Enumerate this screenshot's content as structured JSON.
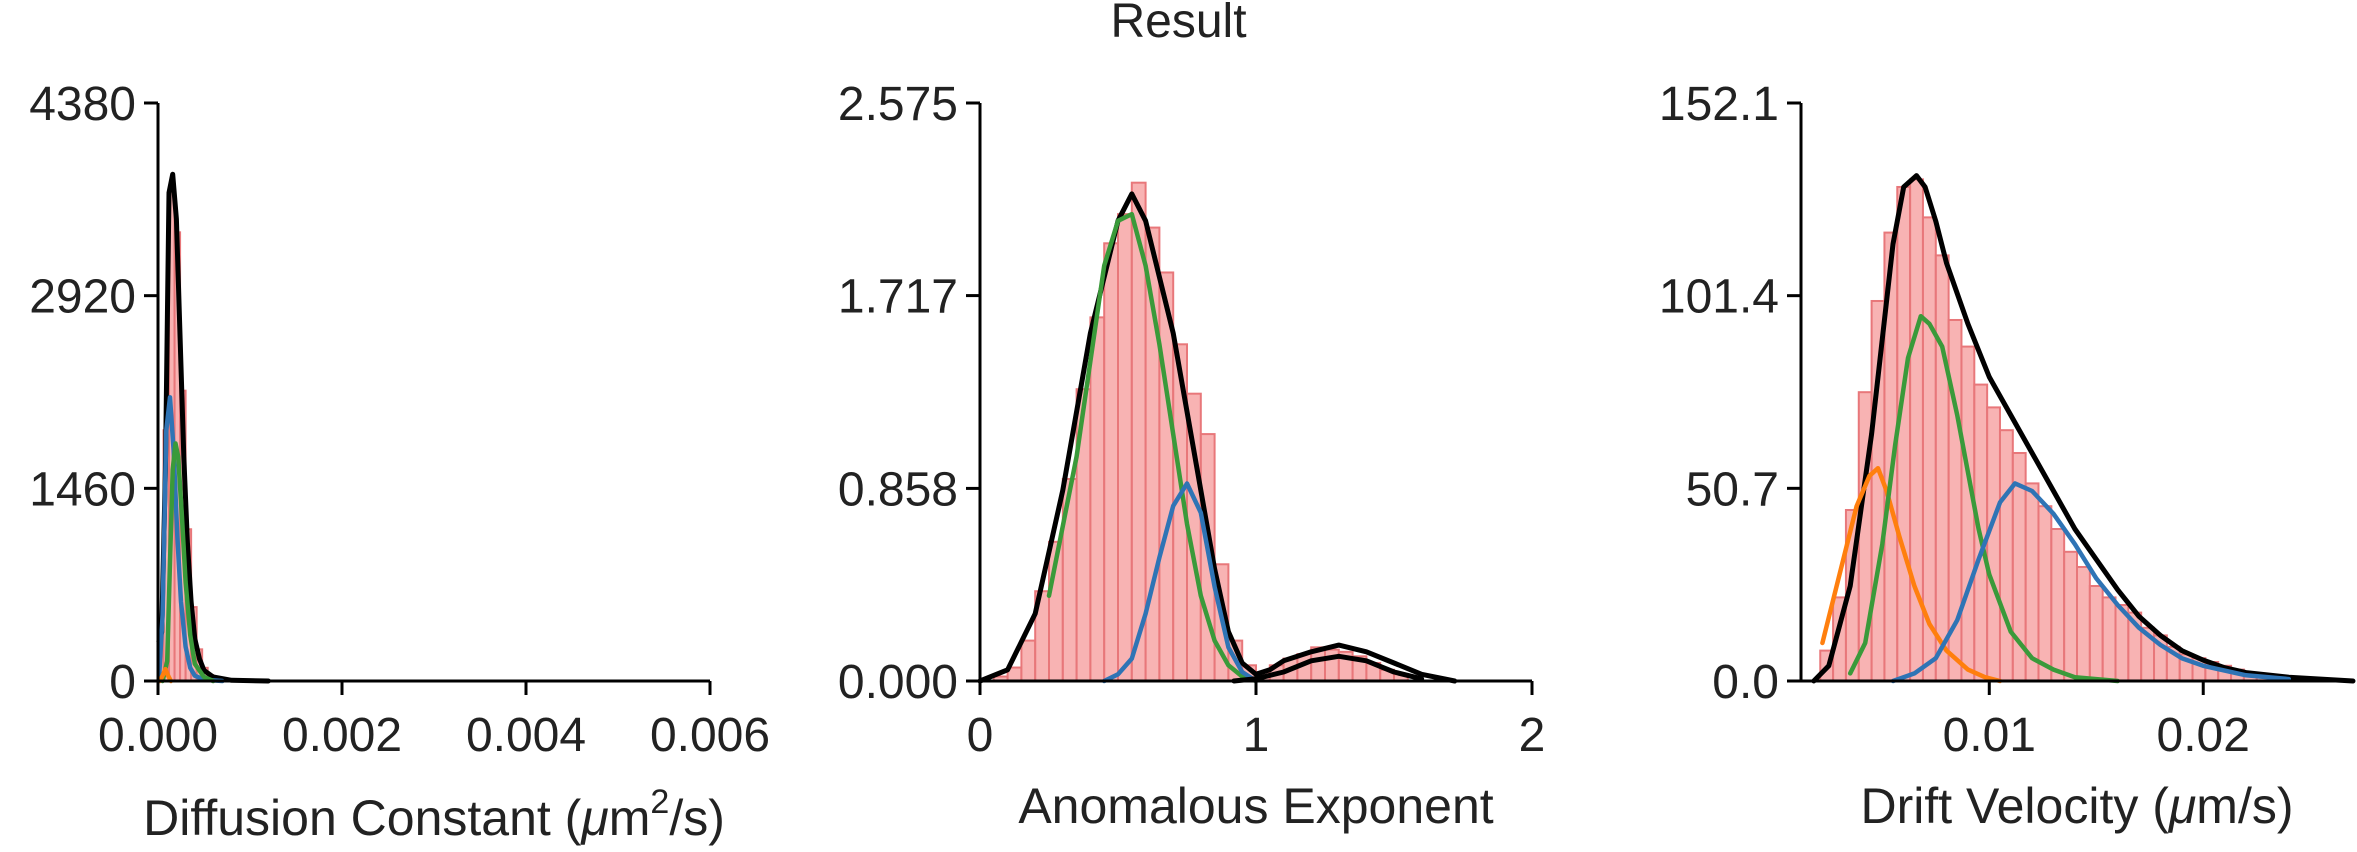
{
  "figure_title": "Result",
  "colors": {
    "hist_fill": "#f7a6a6",
    "hist_edge": "#e8777a",
    "total": "#000000",
    "blue": "#2f74b5",
    "green": "#3a9a3a",
    "orange": "#ff7f0e"
  },
  "chart_data": [
    {
      "type": "bar",
      "overlay": "line",
      "xlabel_text": "Diffusion Constant (",
      "xlabel_mu": "μ",
      "xlabel_m": "m",
      "xlabel_sup": "2",
      "xlabel_tail": "/s)",
      "xlim": [
        0,
        0.006
      ],
      "ylim": [
        0,
        4380
      ],
      "xticks": [
        0,
        0.002,
        0.004,
        0.006
      ],
      "xticklabels": [
        "0.000",
        "0.002",
        "0.004",
        "0.006"
      ],
      "yticks": [
        0,
        1460,
        2920,
        4380
      ],
      "yticklabels": [
        "0",
        "1460",
        "2920",
        "4380"
      ],
      "grid": false,
      "histogram": {
        "bin_width": 6e-05,
        "centers": [
          3e-05,
          9e-05,
          0.00015,
          0.00021,
          0.00027,
          0.00033,
          0.00039,
          0.00045,
          0.00051,
          0.00057,
          0.00063,
          0.00069,
          0.00075
        ],
        "values": [
          300,
          1900,
          3750,
          3400,
          2200,
          1150,
          560,
          240,
          100,
          45,
          20,
          10,
          5
        ]
      },
      "series": [
        {
          "color": "black",
          "x": [
            1e-05,
            4e-05,
            8e-05,
            0.00012,
            0.00016,
            0.0002,
            0.00024,
            0.00028,
            0.00032,
            0.00036,
            0.0004,
            0.00045,
            0.0005,
            0.0006,
            0.0008,
            0.0012
          ],
          "y": [
            300,
            370,
            1600,
            3700,
            3840,
            3500,
            2600,
            1700,
            1050,
            600,
            320,
            170,
            80,
            30,
            5,
            0
          ]
        },
        {
          "color": "blue",
          "x": [
            1e-05,
            5e-05,
            9e-05,
            0.00013,
            0.00017,
            0.00021,
            0.00025,
            0.0003,
            0.00035,
            0.0004,
            0.0005,
            0.0007
          ],
          "y": [
            0,
            500,
            1900,
            2150,
            1750,
            1100,
            600,
            260,
            100,
            40,
            10,
            0
          ]
        },
        {
          "color": "green",
          "x": [
            5e-05,
            0.0001,
            0.00013,
            0.00016,
            0.00019,
            0.00022,
            0.00026,
            0.0003,
            0.00035,
            0.0004,
            0.0005,
            0.0006
          ],
          "y": [
            0,
            150,
            900,
            1600,
            1800,
            1700,
            1250,
            750,
            350,
            130,
            30,
            0
          ]
        },
        {
          "color": "orange",
          "x": [
            2e-05,
            5e-05,
            8e-05,
            0.00011,
            0.00014
          ],
          "y": [
            0,
            40,
            90,
            40,
            0
          ]
        }
      ]
    },
    {
      "type": "bar",
      "overlay": "line",
      "xlabel": "Anomalous Exponent",
      "xlim": [
        0,
        2
      ],
      "ylim": [
        0,
        2.575
      ],
      "xticks": [
        0,
        1,
        2
      ],
      "xticklabels": [
        "0",
        "1",
        "2"
      ],
      "yticks": [
        0,
        0.858,
        1.717,
        2.575
      ],
      "yticklabels": [
        "0.000",
        "0.858",
        "1.717",
        "2.575"
      ],
      "grid": false,
      "histogram": {
        "bin_width": 0.05,
        "centers": [
          0.075,
          0.125,
          0.175,
          0.225,
          0.275,
          0.325,
          0.375,
          0.425,
          0.475,
          0.525,
          0.575,
          0.625,
          0.675,
          0.725,
          0.775,
          0.825,
          0.875,
          0.925,
          0.975,
          1.025,
          1.075,
          1.125,
          1.175,
          1.225,
          1.275,
          1.325,
          1.375,
          1.425,
          1.475,
          1.525
        ],
        "values": [
          0.02,
          0.06,
          0.18,
          0.4,
          0.62,
          0.9,
          1.3,
          1.62,
          1.95,
          2.08,
          2.22,
          2.02,
          1.82,
          1.5,
          1.28,
          1.1,
          0.52,
          0.18,
          0.07,
          0.04,
          0.07,
          0.1,
          0.12,
          0.15,
          0.14,
          0.13,
          0.11,
          0.08,
          0.05,
          0.03
        ]
      },
      "series": [
        {
          "color": "black",
          "x": [
            0,
            0.1,
            0.2,
            0.3,
            0.4,
            0.5,
            0.55,
            0.6,
            0.65,
            0.7,
            0.75,
            0.8,
            0.85,
            0.9,
            0.95,
            1.0,
            1.05,
            1.1,
            1.2,
            1.3,
            1.4,
            1.5,
            1.6,
            1.72
          ],
          "y": [
            0,
            0.05,
            0.3,
            0.85,
            1.55,
            2.05,
            2.17,
            2.05,
            1.8,
            1.55,
            1.2,
            0.85,
            0.5,
            0.22,
            0.08,
            0.03,
            0.05,
            0.09,
            0.13,
            0.16,
            0.13,
            0.08,
            0.03,
            0
          ]
        },
        {
          "color": "green",
          "x": [
            0.25,
            0.35,
            0.45,
            0.5,
            0.55,
            0.6,
            0.65,
            0.7,
            0.75,
            0.8,
            0.85,
            0.9,
            0.95,
            1.0
          ],
          "y": [
            0.38,
            1.0,
            1.85,
            2.05,
            2.08,
            1.85,
            1.5,
            1.1,
            0.7,
            0.38,
            0.18,
            0.07,
            0.02,
            0
          ]
        },
        {
          "color": "blue",
          "x": [
            0.45,
            0.5,
            0.55,
            0.6,
            0.65,
            0.7,
            0.75,
            0.8,
            0.85,
            0.9,
            0.95,
            1.0
          ],
          "y": [
            0,
            0.03,
            0.1,
            0.3,
            0.55,
            0.78,
            0.88,
            0.75,
            0.42,
            0.15,
            0.04,
            0
          ]
        },
        {
          "color": "black",
          "x": [
            0.92,
            1.0,
            1.1,
            1.2,
            1.3,
            1.4,
            1.5,
            1.6
          ],
          "y": [
            0,
            0.01,
            0.04,
            0.09,
            0.11,
            0.09,
            0.04,
            0.01
          ]
        }
      ]
    },
    {
      "type": "bar",
      "overlay": "line",
      "xlabel_text": "Drift Velocity (",
      "xlabel_mu": "μ",
      "xlabel_tail": "m/s)",
      "xlim": [
        0.0012,
        0.027
      ],
      "ylim": [
        0,
        152.1
      ],
      "xticks": [
        0.01,
        0.02
      ],
      "xticklabels": [
        "0.01",
        "0.02"
      ],
      "yticks": [
        0,
        50.7,
        101.4,
        152.1
      ],
      "yticklabels": [
        "0.0",
        "50.7",
        "101.4",
        "152.1"
      ],
      "grid": false,
      "histogram": {
        "bin_width": 0.0006,
        "centers": [
          0.0024,
          0.003,
          0.0036,
          0.0042,
          0.0048,
          0.0054,
          0.006,
          0.0066,
          0.0072,
          0.0078,
          0.0084,
          0.009,
          0.0096,
          0.0102,
          0.0108,
          0.0114,
          0.012,
          0.0126,
          0.0132,
          0.0138,
          0.0144,
          0.015,
          0.0156,
          0.0162,
          0.0168,
          0.0174,
          0.018,
          0.0186,
          0.0192,
          0.0198,
          0.0204,
          0.021,
          0.0216,
          0.0222,
          0.0228
        ],
        "values": [
          8,
          22,
          45,
          76,
          100,
          118,
          130,
          132,
          122,
          112,
          95,
          88,
          78,
          72,
          66,
          60,
          52,
          46,
          40,
          34,
          30,
          25,
          22,
          20,
          18,
          14,
          12,
          9,
          7,
          6,
          5,
          4,
          3,
          2,
          1
        ]
      },
      "series": [
        {
          "color": "black",
          "x": [
            0.0018,
            0.0025,
            0.0035,
            0.0045,
            0.0055,
            0.006,
            0.0066,
            0.007,
            0.0075,
            0.008,
            0.009,
            0.01,
            0.011,
            0.012,
            0.013,
            0.014,
            0.015,
            0.016,
            0.017,
            0.018,
            0.019,
            0.02,
            0.021,
            0.022,
            0.024,
            0.027
          ],
          "y": [
            0,
            4,
            25,
            65,
            115,
            130,
            133,
            130,
            121,
            110,
            94,
            80,
            70,
            60,
            50,
            40,
            32,
            24,
            17,
            12,
            8,
            5.5,
            3.5,
            2.2,
            1,
            0
          ]
        },
        {
          "color": "orange",
          "x": [
            0.0022,
            0.003,
            0.0038,
            0.0044,
            0.0048,
            0.0052,
            0.0058,
            0.0065,
            0.0072,
            0.008,
            0.009,
            0.0098,
            0.0105
          ],
          "y": [
            10,
            28,
            46,
            54,
            56,
            50,
            38,
            25,
            15,
            8,
            3,
            1,
            0
          ]
        },
        {
          "color": "green",
          "x": [
            0.0035,
            0.0042,
            0.005,
            0.0056,
            0.0062,
            0.0068,
            0.0072,
            0.0078,
            0.0085,
            0.009,
            0.0095,
            0.01,
            0.011,
            0.012,
            0.013,
            0.014,
            0.016
          ],
          "y": [
            2,
            10,
            36,
            62,
            85,
            96,
            94,
            88,
            70,
            55,
            40,
            28,
            13,
            6,
            3,
            1,
            0
          ]
        },
        {
          "color": "blue",
          "x": [
            0.0055,
            0.0065,
            0.0075,
            0.0085,
            0.0095,
            0.0105,
            0.0112,
            0.012,
            0.013,
            0.014,
            0.015,
            0.016,
            0.017,
            0.018,
            0.019,
            0.02,
            0.022,
            0.024
          ],
          "y": [
            0,
            2,
            6,
            16,
            32,
            47,
            52,
            50,
            44,
            36,
            27,
            20,
            14,
            9.5,
            6,
            4,
            1.5,
            0.5
          ]
        }
      ]
    }
  ]
}
